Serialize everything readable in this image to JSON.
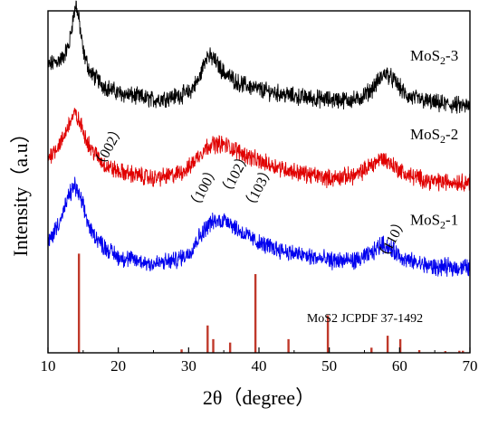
{
  "chart_data": {
    "type": "line",
    "title": "",
    "xlabel": "2θ（degree）",
    "ylabel": "Intensity（a.u）",
    "xlim": [
      10,
      70
    ],
    "xticks": [
      10,
      20,
      30,
      40,
      50,
      60,
      70
    ],
    "y_ticks_shown": false,
    "grid": false,
    "legend": "inline labels at right",
    "series": [
      {
        "name": "MoS2-3",
        "label_main": "MoS",
        "label_sub": "2",
        "label_tail": "-3",
        "color": "#000000",
        "offset": 0.7,
        "baseline": [
          [
            10,
            0.14
          ],
          [
            12,
            0.16
          ],
          [
            13,
            0.2
          ],
          [
            13.5,
            0.27
          ],
          [
            14,
            0.32
          ],
          [
            14.5,
            0.26
          ],
          [
            15,
            0.18
          ],
          [
            16,
            0.12
          ],
          [
            18,
            0.08
          ],
          [
            20,
            0.06
          ],
          [
            25,
            0.04
          ],
          [
            28,
            0.05
          ],
          [
            30,
            0.06
          ],
          [
            31.5,
            0.1
          ],
          [
            32.5,
            0.17
          ],
          [
            33.5,
            0.16
          ],
          [
            35,
            0.12
          ],
          [
            37,
            0.09
          ],
          [
            40,
            0.07
          ],
          [
            45,
            0.05
          ],
          [
            50,
            0.04
          ],
          [
            54,
            0.04
          ],
          [
            56,
            0.07
          ],
          [
            58,
            0.12
          ],
          [
            59.5,
            0.09
          ],
          [
            61,
            0.05
          ],
          [
            65,
            0.03
          ],
          [
            70,
            0.02
          ]
        ]
      },
      {
        "name": "MoS2-2",
        "label_main": "MoS",
        "label_sub": "2",
        "label_tail": "-2",
        "color": "#e00000",
        "offset": 0.48,
        "baseline": [
          [
            10,
            0.09
          ],
          [
            12,
            0.14
          ],
          [
            13,
            0.19
          ],
          [
            13.8,
            0.22
          ],
          [
            14.8,
            0.18
          ],
          [
            16,
            0.12
          ],
          [
            18,
            0.07
          ],
          [
            20,
            0.05
          ],
          [
            25,
            0.03
          ],
          [
            28,
            0.04
          ],
          [
            30,
            0.06
          ],
          [
            31.5,
            0.1
          ],
          [
            33,
            0.13
          ],
          [
            35,
            0.13
          ],
          [
            37,
            0.11
          ],
          [
            40,
            0.08
          ],
          [
            45,
            0.05
          ],
          [
            50,
            0.03
          ],
          [
            54,
            0.04
          ],
          [
            56,
            0.07
          ],
          [
            57.5,
            0.09
          ],
          [
            59,
            0.07
          ],
          [
            61,
            0.04
          ],
          [
            65,
            0.02
          ],
          [
            70,
            0.02
          ]
        ]
      },
      {
        "name": "MoS2-1",
        "label_main": "MoS",
        "label_sub": "2",
        "label_tail": "-1",
        "color": "#0000ee",
        "offset": 0.24,
        "baseline": [
          [
            10,
            0.08
          ],
          [
            12,
            0.16
          ],
          [
            13,
            0.22
          ],
          [
            13.8,
            0.25
          ],
          [
            14.8,
            0.2
          ],
          [
            16,
            0.12
          ],
          [
            18,
            0.07
          ],
          [
            20,
            0.04
          ],
          [
            25,
            0.02
          ],
          [
            28,
            0.03
          ],
          [
            30,
            0.05
          ],
          [
            31.5,
            0.1
          ],
          [
            33,
            0.14
          ],
          [
            35.5,
            0.15
          ],
          [
            37,
            0.12
          ],
          [
            40,
            0.08
          ],
          [
            45,
            0.05
          ],
          [
            50,
            0.03
          ],
          [
            54,
            0.03
          ],
          [
            56,
            0.05
          ],
          [
            57.5,
            0.08
          ],
          [
            59,
            0.06
          ],
          [
            61,
            0.03
          ],
          [
            65,
            0.01
          ],
          [
            70,
            0.01
          ]
        ]
      }
    ],
    "hkl_annotations": [
      {
        "label": "（002）",
        "x": 17.5,
        "y": 0.53
      },
      {
        "label": "（100）",
        "x": 31.0,
        "y": 0.41
      },
      {
        "label": "（102）",
        "x": 35.5,
        "y": 0.45
      },
      {
        "label": "（103）",
        "x": 38.8,
        "y": 0.41
      },
      {
        "label": "（110）",
        "x": 57.8,
        "y": 0.26
      }
    ],
    "reference": {
      "label": "MoS2   JCPDF 37-1492",
      "color": "#c0392b",
      "lines": [
        {
          "x": 14.4,
          "h": 0.29
        },
        {
          "x": 29.0,
          "h": 0.01
        },
        {
          "x": 32.7,
          "h": 0.08
        },
        {
          "x": 33.5,
          "h": 0.04
        },
        {
          "x": 35.9,
          "h": 0.03
        },
        {
          "x": 39.5,
          "h": 0.23
        },
        {
          "x": 44.2,
          "h": 0.04
        },
        {
          "x": 49.8,
          "h": 0.11
        },
        {
          "x": 56.0,
          "h": 0.015
        },
        {
          "x": 58.3,
          "h": 0.05
        },
        {
          "x": 60.1,
          "h": 0.04
        },
        {
          "x": 62.8,
          "h": 0.008
        },
        {
          "x": 66.5,
          "h": 0.005
        },
        {
          "x": 68.5,
          "h": 0.006
        },
        {
          "x": 69.0,
          "h": 0.006
        }
      ]
    }
  }
}
